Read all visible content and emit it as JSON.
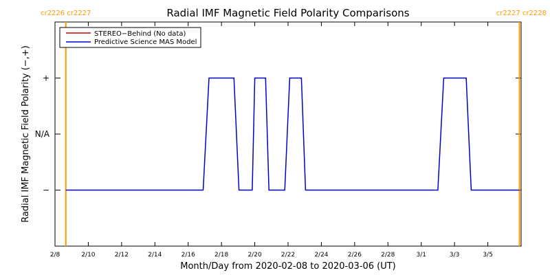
{
  "chart_data": {
    "type": "line",
    "title": "Radial IMF Magnetic Field Polarity Comparisons",
    "xlabel": "Month/Day from 2020-02-08 to 2020-03-06 (UT)",
    "ylabel": "Radial IMF Magnetic Field Polarity (−,+)",
    "x_unit": "days since 2020-02-08 00:00 UT",
    "xlim": [
      0,
      28
    ],
    "ylim": [
      -2,
      2
    ],
    "x_ticks": [
      {
        "x": 0,
        "label": "2/8"
      },
      {
        "x": 2,
        "label": "2/10"
      },
      {
        "x": 4,
        "label": "2/12"
      },
      {
        "x": 6,
        "label": "2/14"
      },
      {
        "x": 8,
        "label": "2/16"
      },
      {
        "x": 10,
        "label": "2/18"
      },
      {
        "x": 12,
        "label": "2/20"
      },
      {
        "x": 14,
        "label": "2/22"
      },
      {
        "x": 16,
        "label": "2/24"
      },
      {
        "x": 18,
        "label": "2/26"
      },
      {
        "x": 20,
        "label": "2/28"
      },
      {
        "x": 22,
        "label": "3/1"
      },
      {
        "x": 24,
        "label": "3/3"
      },
      {
        "x": 26,
        "label": "3/5"
      }
    ],
    "y_ticks": [
      {
        "y": 1,
        "label": "+"
      },
      {
        "y": 0,
        "label": "N/A"
      },
      {
        "y": -1,
        "label": "−"
      }
    ],
    "carrington_markers": [
      {
        "x": 0.65,
        "label": "cr2226 cr2227",
        "color": "#ff9900"
      },
      {
        "x": 27.9,
        "label": "cr2227 cr2228",
        "color": "#ff9900"
      }
    ],
    "legend_position": "top-left",
    "series": [
      {
        "name": "STEREO−Behind (No data)",
        "color": "#cc0000",
        "x": [],
        "y": []
      },
      {
        "name": "Predictive Science MAS Model",
        "color": "#0000cc",
        "x": [
          0.65,
          8.9,
          9.25,
          10.75,
          11.05,
          11.85,
          12.0,
          12.65,
          12.85,
          13.8,
          14.1,
          14.8,
          15.05,
          23.0,
          23.35,
          24.7,
          25.0,
          27.9
        ],
        "y": [
          -1,
          -1,
          1,
          1,
          -1,
          -1,
          1,
          1,
          -1,
          -1,
          1,
          1,
          -1,
          -1,
          1,
          1,
          -1,
          -1
        ]
      }
    ]
  }
}
